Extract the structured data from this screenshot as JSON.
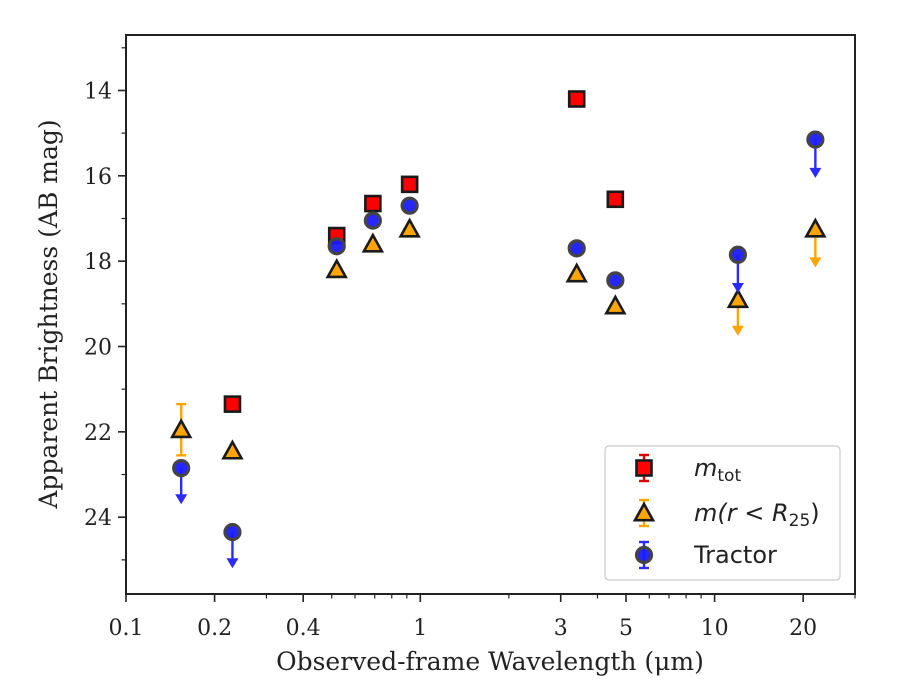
{
  "chart_data": {
    "type": "scatter",
    "title": "",
    "xlabel": "Observed-frame Wavelength (μm)",
    "ylabel": "Apparent Brightness (AB mag)",
    "xscale": "log",
    "xlim": [
      0.1,
      30
    ],
    "ylim": [
      25.8,
      12.7
    ],
    "y_inverted": true,
    "xticks": [
      {
        "value": 0.1,
        "label": "0.1"
      },
      {
        "value": 0.2,
        "label": "0.2"
      },
      {
        "value": 0.4,
        "label": "0.4"
      },
      {
        "value": 1,
        "label": "1"
      },
      {
        "value": 3,
        "label": "3"
      },
      {
        "value": 5,
        "label": "5"
      },
      {
        "value": 10,
        "label": "10"
      },
      {
        "value": 20,
        "label": "20"
      }
    ],
    "yticks": [
      14,
      16,
      18,
      20,
      22,
      24
    ],
    "legend_position": "lower-right",
    "series": [
      {
        "key": "mtot",
        "name": "m_tot",
        "legend_main": "m",
        "legend_sub": "tot",
        "marker": "square",
        "face_color": "#ff0000",
        "edge_color": "#1a1a1a",
        "err_color": "#e00000",
        "points": [
          {
            "x": 0.23,
            "y": 21.35
          },
          {
            "x": 0.52,
            "y": 17.4
          },
          {
            "x": 0.69,
            "y": 16.65
          },
          {
            "x": 0.92,
            "y": 16.2
          },
          {
            "x": 3.4,
            "y": 14.2
          },
          {
            "x": 4.6,
            "y": 16.55
          }
        ]
      },
      {
        "key": "mr25",
        "name": "m(r < R25)",
        "legend_main": "m(r < R",
        "legend_sub": "25",
        "legend_close": ")",
        "marker": "triangle",
        "face_color": "#ffa500",
        "edge_color": "#1a1a1a",
        "err_color": "#ffa500",
        "points": [
          {
            "x": 0.154,
            "y": 21.95,
            "err_low": 22.55,
            "err_high": 21.35
          },
          {
            "x": 0.23,
            "y": 22.45
          },
          {
            "x": 0.52,
            "y": 18.2
          },
          {
            "x": 0.69,
            "y": 17.6
          },
          {
            "x": 0.92,
            "y": 17.25
          },
          {
            "x": 3.4,
            "y": 18.3
          },
          {
            "x": 4.6,
            "y": 19.05
          },
          {
            "x": 12.0,
            "y": 18.9,
            "upper_limit": true,
            "arrow_to": 19.7
          },
          {
            "x": 22.0,
            "y": 17.25,
            "upper_limit": true,
            "arrow_to": 18.1
          }
        ]
      },
      {
        "key": "tractor",
        "name": "Tractor",
        "legend_main": "Tractor",
        "marker": "circle",
        "face_color": "#1a1aff",
        "edge_color": "#444444",
        "err_color": "#2b2bff",
        "points": [
          {
            "x": 0.154,
            "y": 22.85,
            "upper_limit": true,
            "arrow_to": 23.65
          },
          {
            "x": 0.23,
            "y": 24.35,
            "upper_limit": true,
            "arrow_to": 25.15
          },
          {
            "x": 0.52,
            "y": 17.65
          },
          {
            "x": 0.69,
            "y": 17.05
          },
          {
            "x": 0.92,
            "y": 16.7
          },
          {
            "x": 3.4,
            "y": 17.7
          },
          {
            "x": 4.6,
            "y": 18.45
          },
          {
            "x": 12.0,
            "y": 17.85,
            "upper_limit": true,
            "arrow_to": 18.7
          },
          {
            "x": 22.0,
            "y": 15.15,
            "upper_limit": true,
            "arrow_to": 16.0
          }
        ]
      }
    ]
  }
}
